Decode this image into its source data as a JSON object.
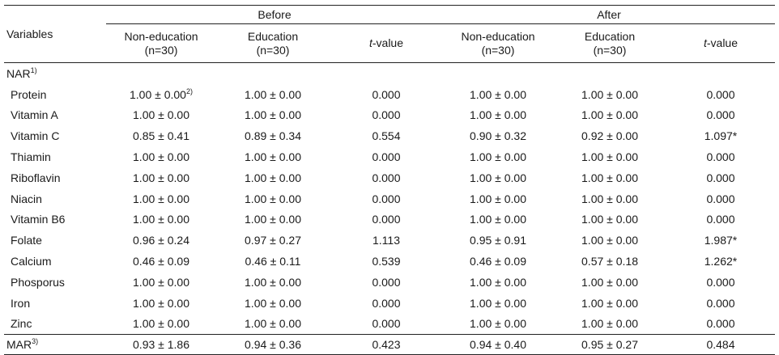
{
  "headers": {
    "variables": "Variables",
    "before": "Before",
    "after": "After",
    "non_education": "Non-education",
    "education": "Education",
    "n": "(n=30)",
    "t_italic": "t",
    "t_rest": "-value"
  },
  "nar_label": "NAR",
  "nar_sup": "1)",
  "first_sup": "2)",
  "rows": [
    {
      "var": "Protein",
      "b_non": "1.00 ± 0.00",
      "b_edu": "1.00 ± 0.00",
      "b_t": "0.000",
      "a_non": "1.00 ± 0.00",
      "a_edu": "1.00 ± 0.00",
      "a_t": "0.000"
    },
    {
      "var": "Vitamin A",
      "b_non": "1.00 ± 0.00",
      "b_edu": "1.00 ± 0.00",
      "b_t": "0.000",
      "a_non": "1.00 ± 0.00",
      "a_edu": "1.00 ± 0.00",
      "a_t": "0.000"
    },
    {
      "var": "Vitamin C",
      "b_non": "0.85 ± 0.41",
      "b_edu": "0.89 ± 0.34",
      "b_t": "0.554",
      "a_non": "0.90 ± 0.32",
      "a_edu": "0.92 ± 0.00",
      "a_t": "1.097*"
    },
    {
      "var": "Thiamin",
      "b_non": "1.00 ± 0.00",
      "b_edu": "1.00 ± 0.00",
      "b_t": "0.000",
      "a_non": "1.00 ± 0.00",
      "a_edu": "1.00 ± 0.00",
      "a_t": "0.000"
    },
    {
      "var": "Riboflavin",
      "b_non": "1.00 ± 0.00",
      "b_edu": "1.00 ± 0.00",
      "b_t": "0.000",
      "a_non": "1.00 ± 0.00",
      "a_edu": "1.00 ± 0.00",
      "a_t": "0.000"
    },
    {
      "var": "Niacin",
      "b_non": "1.00 ± 0.00",
      "b_edu": "1.00 ± 0.00",
      "b_t": "0.000",
      "a_non": "1.00 ± 0.00",
      "a_edu": "1.00 ± 0.00",
      "a_t": "0.000"
    },
    {
      "var": "Vitamin B6",
      "b_non": "1.00 ± 0.00",
      "b_edu": "1.00 ± 0.00",
      "b_t": "0.000",
      "a_non": "1.00 ± 0.00",
      "a_edu": "1.00 ± 0.00",
      "a_t": "0.000"
    },
    {
      "var": "Folate",
      "b_non": "0.96 ± 0.24",
      "b_edu": "0.97 ± 0.27",
      "b_t": "1.113",
      "a_non": "0.95 ± 0.91",
      "a_edu": "1.00 ± 0.00",
      "a_t": "1.987*"
    },
    {
      "var": "Calcium",
      "b_non": "0.46 ± 0.09",
      "b_edu": "0.46 ± 0.11",
      "b_t": "0.539",
      "a_non": "0.46 ± 0.09",
      "a_edu": "0.57 ± 0.18",
      "a_t": "1.262*"
    },
    {
      "var": "Phosporus",
      "b_non": "1.00 ± 0.00",
      "b_edu": "1.00 ± 0.00",
      "b_t": "0.000",
      "a_non": "1.00 ± 0.00",
      "a_edu": "1.00 ± 0.00",
      "a_t": "0.000"
    },
    {
      "var": "Iron",
      "b_non": "1.00 ± 0.00",
      "b_edu": "1.00 ± 0.00",
      "b_t": "0.000",
      "a_non": "1.00 ± 0.00",
      "a_edu": "1.00 ± 0.00",
      "a_t": "0.000"
    },
    {
      "var": "Zinc",
      "b_non": "1.00 ± 0.00",
      "b_edu": "1.00 ± 0.00",
      "b_t": "0.000",
      "a_non": "1.00 ± 0.00",
      "a_edu": "1.00 ± 0.00",
      "a_t": "0.000"
    }
  ],
  "mar": {
    "label": "MAR",
    "sup": "3)",
    "b_non": "0.93 ± 1.86",
    "b_edu": "0.94 ± 0.36",
    "b_t": "0.423",
    "a_non": "0.94 ± 0.40",
    "a_edu": "0.95 ± 0.27",
    "a_t": "0.484"
  }
}
